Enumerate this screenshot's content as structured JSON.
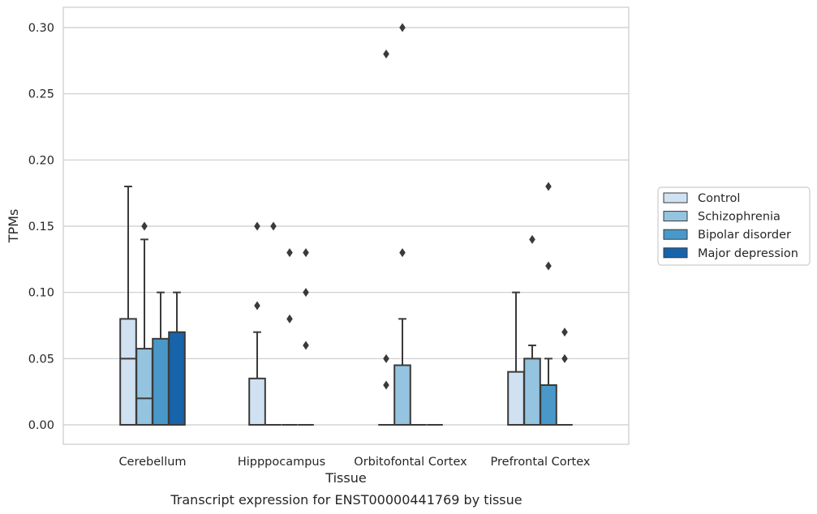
{
  "caption": "Transcript expression for ENST00000441769 by tissue",
  "chart_data": {
    "type": "box",
    "xlabel": "Tissue",
    "ylabel": "TPMs",
    "ylim": [
      -0.015,
      0.315
    ],
    "yticks": [
      0.0,
      0.05,
      0.1,
      0.15,
      0.2,
      0.25,
      0.3
    ],
    "ytick_labels": [
      "0.00",
      "0.05",
      "0.10",
      "0.15",
      "0.20",
      "0.25",
      "0.30"
    ],
    "grid": "horizontal",
    "legend_position": "outside-right",
    "categories": [
      "Cerebellum",
      "Hipppocampus",
      "Orbitofontal Cortex",
      "Prefrontal Cortex"
    ],
    "series": [
      {
        "name": "Control",
        "color": "#d0e1f2",
        "boxes": [
          {
            "q1": 0.0,
            "median": 0.05,
            "q3": 0.08,
            "whisker_low": 0.0,
            "whisker_high": 0.18,
            "outliers": []
          },
          {
            "q1": 0.0,
            "median": 0.0,
            "q3": 0.035,
            "whisker_low": 0.0,
            "whisker_high": 0.07,
            "outliers": [
              0.09,
              0.15
            ]
          },
          {
            "q1": 0.0,
            "median": 0.0,
            "q3": 0.0,
            "whisker_low": 0.0,
            "whisker_high": 0.0,
            "outliers": [
              0.03,
              0.05,
              0.28
            ]
          },
          {
            "q1": 0.0,
            "median": 0.0,
            "q3": 0.04,
            "whisker_low": 0.0,
            "whisker_high": 0.1,
            "outliers": []
          }
        ]
      },
      {
        "name": "Schizophrenia",
        "color": "#94c4df",
        "boxes": [
          {
            "q1": 0.0,
            "median": 0.02,
            "q3": 0.0575,
            "whisker_low": 0.0,
            "whisker_high": 0.14,
            "outliers": [
              0.15
            ]
          },
          {
            "q1": 0.0,
            "median": 0.0,
            "q3": 0.0,
            "whisker_low": 0.0,
            "whisker_high": 0.0,
            "outliers": [
              0.15
            ]
          },
          {
            "q1": 0.0,
            "median": 0.0,
            "q3": 0.045,
            "whisker_low": 0.0,
            "whisker_high": 0.08,
            "outliers": [
              0.13,
              0.3
            ]
          },
          {
            "q1": 0.0,
            "median": 0.0,
            "q3": 0.05,
            "whisker_low": 0.0,
            "whisker_high": 0.06,
            "outliers": [
              0.14
            ]
          }
        ]
      },
      {
        "name": "Bipolar disorder",
        "color": "#4a98c9",
        "boxes": [
          {
            "q1": 0.0,
            "median": 0.0,
            "q3": 0.065,
            "whisker_low": 0.0,
            "whisker_high": 0.1,
            "outliers": []
          },
          {
            "q1": 0.0,
            "median": 0.0,
            "q3": 0.0,
            "whisker_low": 0.0,
            "whisker_high": 0.0,
            "outliers": [
              0.08,
              0.13
            ]
          },
          {
            "q1": 0.0,
            "median": 0.0,
            "q3": 0.0,
            "whisker_low": 0.0,
            "whisker_high": 0.0,
            "outliers": []
          },
          {
            "q1": 0.0,
            "median": 0.0,
            "q3": 0.03,
            "whisker_low": 0.0,
            "whisker_high": 0.05,
            "outliers": [
              0.12,
              0.18
            ]
          }
        ]
      },
      {
        "name": "Major depression",
        "color": "#1764ab",
        "boxes": [
          {
            "q1": 0.0,
            "median": 0.0,
            "q3": 0.07,
            "whisker_low": 0.0,
            "whisker_high": 0.1,
            "outliers": []
          },
          {
            "q1": 0.0,
            "median": 0.0,
            "q3": 0.0,
            "whisker_low": 0.0,
            "whisker_high": 0.0,
            "outliers": [
              0.06,
              0.1,
              0.13
            ]
          },
          {
            "q1": 0.0,
            "median": 0.0,
            "q3": 0.0,
            "whisker_low": 0.0,
            "whisker_high": 0.0,
            "outliers": []
          },
          {
            "q1": 0.0,
            "median": 0.0,
            "q3": 0.0,
            "whisker_low": 0.0,
            "whisker_high": 0.0,
            "outliers": [
              0.05,
              0.07
            ]
          }
        ]
      }
    ]
  }
}
